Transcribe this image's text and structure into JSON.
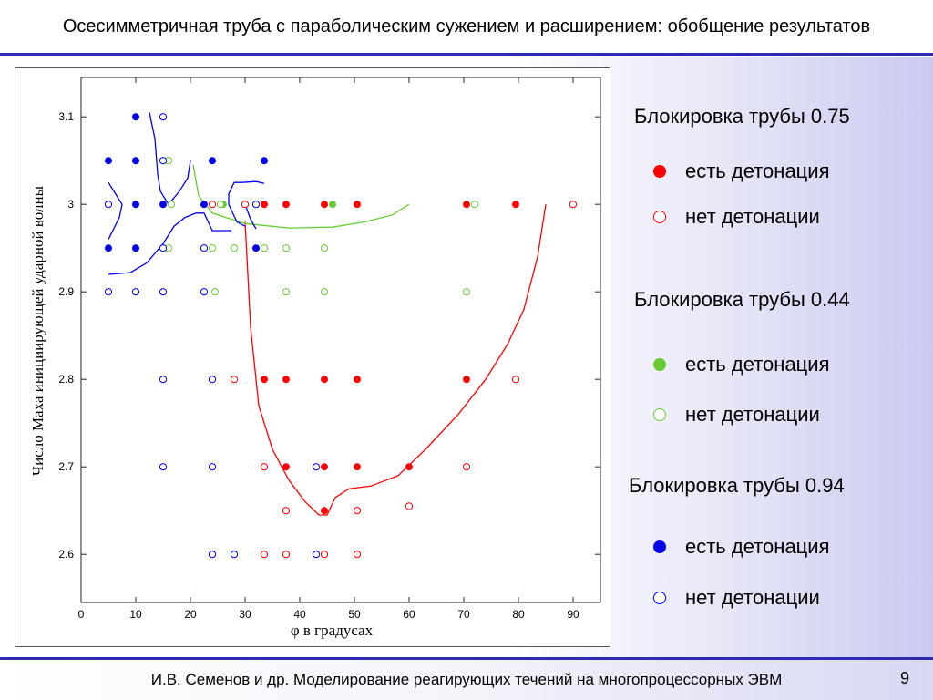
{
  "slide": {
    "title": "Осесимметричная труба с параболическим сужением и расширением: обобщение результатов",
    "footer": "И.В. Семенов и др. Моделирование реагирующих течений на многопроцессорных ЭВМ",
    "page_number": "9"
  },
  "colors": {
    "rule": "#2b2bb3",
    "red": "#ff0000",
    "green": "#66cc33",
    "blue": "#0000ee"
  },
  "legend": {
    "groups": [
      {
        "title": "Блокировка трубы 0.75",
        "color": "#ff0000",
        "filled_label": "есть детонация",
        "empty_label": "нет детонации"
      },
      {
        "title": "Блокировка трубы 0.44",
        "color": "#66cc33",
        "filled_label": "есть детонация",
        "empty_label": "нет детонации"
      },
      {
        "title": "Блокировка трубы 0.94",
        "color": "#0000ee",
        "filled_label": "есть детонация",
        "empty_label": "нет детонации"
      }
    ]
  },
  "chart_data": {
    "type": "scatter",
    "xlabel": "φ в градусах",
    "ylabel": "Число Маха инициирующей ударной волны",
    "xlim": [
      0,
      95
    ],
    "ylim": [
      2.545,
      3.145
    ],
    "xticks": [
      0,
      10,
      20,
      30,
      40,
      50,
      60,
      70,
      80,
      90
    ],
    "yticks": [
      2.6,
      2.7,
      2.8,
      2.9,
      3,
      3.1
    ],
    "ytick_labels": [
      "2.6",
      "2.7",
      "2.8",
      "2.9",
      "3",
      "3.1"
    ],
    "series": [
      {
        "name": "Блокировка трубы 0.75 — есть детонация",
        "color": "#ff0000",
        "filled": true,
        "points": [
          [
            33.5,
            3
          ],
          [
            37.5,
            3
          ],
          [
            44.5,
            3
          ],
          [
            50.5,
            3
          ],
          [
            70.5,
            3
          ],
          [
            79.5,
            3
          ],
          [
            33.5,
            2.8
          ],
          [
            37.5,
            2.8
          ],
          [
            44.5,
            2.8
          ],
          [
            50.5,
            2.8
          ],
          [
            70.5,
            2.8
          ],
          [
            37.5,
            2.7
          ],
          [
            44.5,
            2.7
          ],
          [
            50.5,
            2.7
          ],
          [
            60,
            2.7
          ],
          [
            44.5,
            2.65
          ]
        ]
      },
      {
        "name": "Блокировка трубы 0.75 — нет детонации",
        "color": "#ff0000",
        "filled": false,
        "points": [
          [
            24,
            3
          ],
          [
            30,
            3
          ],
          [
            90,
            3
          ],
          [
            28,
            2.8
          ],
          [
            79.5,
            2.8
          ],
          [
            33.5,
            2.7
          ],
          [
            70.5,
            2.7
          ],
          [
            37.5,
            2.65
          ],
          [
            50.5,
            2.65
          ],
          [
            60,
            2.655
          ],
          [
            33.5,
            2.6
          ],
          [
            37.5,
            2.6
          ],
          [
            44.5,
            2.6
          ],
          [
            50.5,
            2.6
          ]
        ]
      },
      {
        "name": "Блокировка трубы 0.44 — есть детонация",
        "color": "#66cc33",
        "filled": true,
        "points": [
          [
            26,
            3
          ],
          [
            46,
            3
          ]
        ]
      },
      {
        "name": "Блокировка трубы 0.44 — нет детонации",
        "color": "#66cc33",
        "filled": false,
        "points": [
          [
            16,
            3.05
          ],
          [
            16.5,
            3
          ],
          [
            16,
            2.95
          ],
          [
            24,
            2.95
          ],
          [
            28,
            2.95
          ],
          [
            33.5,
            2.95
          ],
          [
            37.5,
            2.95
          ],
          [
            44.5,
            2.95
          ],
          [
            25.5,
            3
          ],
          [
            72,
            3
          ],
          [
            24.5,
            2.9
          ],
          [
            37.5,
            2.9
          ],
          [
            44.5,
            2.9
          ],
          [
            70.5,
            2.9
          ]
        ]
      },
      {
        "name": "Блокировка трубы 0.94 — есть детонация",
        "color": "#0000ee",
        "filled": true,
        "points": [
          [
            10,
            3.1
          ],
          [
            5,
            3.05
          ],
          [
            10,
            3.05
          ],
          [
            24,
            3.05
          ],
          [
            33.5,
            3.05
          ],
          [
            10,
            3
          ],
          [
            15,
            3
          ],
          [
            22.5,
            3
          ],
          [
            5,
            2.95
          ],
          [
            10,
            2.95
          ],
          [
            32,
            2.95
          ]
        ]
      },
      {
        "name": "Блокировка трубы 0.94 — нет детонации",
        "color": "#0000ee",
        "filled": false,
        "points": [
          [
            15,
            3.1
          ],
          [
            15,
            3.05
          ],
          [
            5,
            3
          ],
          [
            32,
            3
          ],
          [
            15,
            2.95
          ],
          [
            22.5,
            2.95
          ],
          [
            5,
            2.9
          ],
          [
            10,
            2.9
          ],
          [
            15,
            2.9
          ],
          [
            22.5,
            2.9
          ],
          [
            15,
            2.8
          ],
          [
            24,
            2.8
          ],
          [
            15,
            2.7
          ],
          [
            24,
            2.7
          ],
          [
            43,
            2.7
          ],
          [
            24,
            2.6
          ],
          [
            28,
            2.6
          ],
          [
            43,
            2.6
          ]
        ]
      }
    ],
    "boundary_curves": [
      {
        "color": "#ff0000",
        "points": [
          [
            30,
            2.98
          ],
          [
            31,
            2.86
          ],
          [
            32.5,
            2.77
          ],
          [
            35,
            2.72
          ],
          [
            38,
            2.685
          ],
          [
            41,
            2.66
          ],
          [
            43.5,
            2.645
          ],
          [
            45,
            2.645
          ],
          [
            46.5,
            2.665
          ],
          [
            49,
            2.675
          ],
          [
            53,
            2.678
          ],
          [
            58,
            2.69
          ],
          [
            63,
            2.72
          ],
          [
            69,
            2.76
          ],
          [
            74,
            2.8
          ],
          [
            78,
            2.84
          ],
          [
            81,
            2.88
          ],
          [
            83.5,
            2.94
          ],
          [
            85,
            3
          ]
        ]
      },
      {
        "color": "#66cc33",
        "points": [
          [
            20.5,
            3.045
          ],
          [
            21.5,
            3.01
          ],
          [
            24,
            2.99
          ],
          [
            30,
            2.978
          ],
          [
            38,
            2.973
          ],
          [
            46,
            2.974
          ],
          [
            52,
            2.98
          ],
          [
            57,
            2.988
          ],
          [
            60,
            3
          ]
        ]
      },
      {
        "color": "#0000ee",
        "points": [
          [
            12.5,
            3.105
          ],
          [
            13.5,
            3.075
          ],
          [
            14,
            3.035
          ],
          [
            14.5,
            3.015
          ],
          [
            16,
            3.0
          ],
          [
            18,
            3.015
          ],
          [
            19.5,
            3.03
          ],
          [
            20,
            3.05
          ]
        ]
      },
      {
        "color": "#0000ee",
        "points": [
          [
            5,
            3.025
          ],
          [
            6.5,
            3.01
          ],
          [
            7.5,
            3.0
          ],
          [
            7,
            2.985
          ],
          [
            5,
            2.96
          ]
        ]
      },
      {
        "color": "#0000ee",
        "points": [
          [
            5,
            2.92
          ],
          [
            9,
            2.922
          ],
          [
            12,
            2.933
          ],
          [
            15,
            2.955
          ],
          [
            17,
            2.975
          ],
          [
            19,
            2.985
          ],
          [
            21,
            2.99
          ],
          [
            22.5,
            2.99
          ],
          [
            24,
            2.97
          ],
          [
            27.5,
            2.97
          ]
        ]
      },
      {
        "color": "#0000ee",
        "points": [
          [
            28,
            3.025
          ],
          [
            29.5,
            3.025
          ],
          [
            32,
            3.026
          ],
          [
            33.5,
            3.024
          ]
        ]
      },
      {
        "color": "#0000ee",
        "points": [
          [
            28,
            3.025
          ],
          [
            27,
            3.012
          ],
          [
            27,
            3
          ],
          [
            28.5,
            2.98
          ],
          [
            30,
            2.975
          ]
        ]
      },
      {
        "color": "#0000ee",
        "points": [
          [
            30,
            3.0
          ],
          [
            31,
            2.983
          ],
          [
            32,
            2.972
          ]
        ]
      }
    ]
  }
}
